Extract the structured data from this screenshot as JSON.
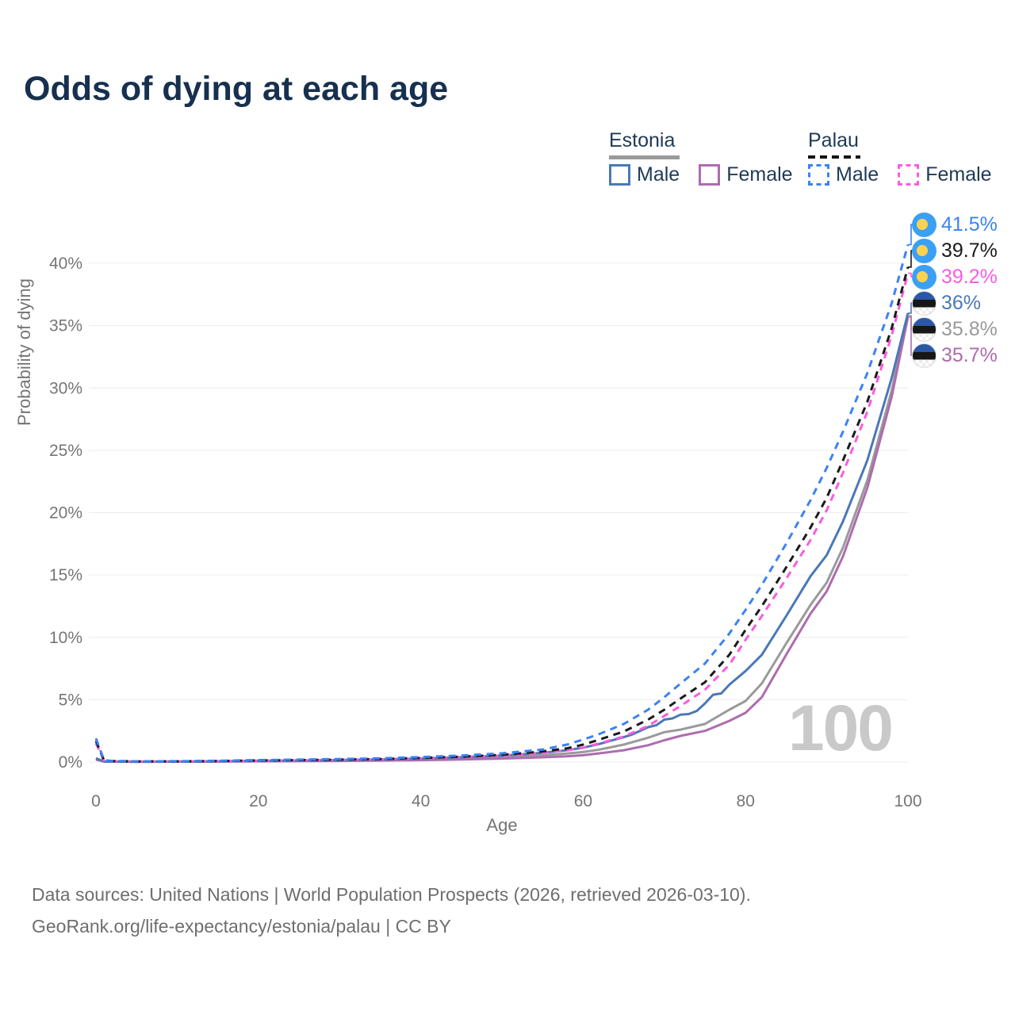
{
  "title": "Odds of dying at each age",
  "legend": {
    "estonia": {
      "name": "Estonia",
      "male": "Male",
      "female": "Female"
    },
    "palau": {
      "name": "Palau",
      "male": "Male",
      "female": "Female"
    }
  },
  "axes": {
    "y_title": "Probability of dying",
    "x_title": "Age"
  },
  "watermark": "100",
  "source": {
    "line1": "Data sources: United Nations | World Population Prospects (2026, retrieved 2026-03-10).",
    "line2": "GeoRank.org/life-expectancy/estonia/palau | CC BY"
  },
  "colors": {
    "title_text": "#17304f",
    "legend_text": "#1f3a56",
    "axis_text": "#757575",
    "grid": "#ececec",
    "watermark": "#c9c9c9",
    "source_text": "#6e6e6e",
    "estonia_underline": "#9a9a9a",
    "palau_underline": "#141414"
  },
  "chart_data": {
    "type": "line",
    "title": "Odds of dying at each age",
    "xlabel": "Age",
    "ylabel": "Probability of dying",
    "xlim": [
      0,
      100
    ],
    "ylim": [
      0,
      43
    ],
    "grid": "horizontal",
    "y_ticks": [
      0,
      5,
      10,
      15,
      20,
      25,
      30,
      35,
      40
    ],
    "y_tick_suffix": "%",
    "x_ticks": [
      0,
      20,
      40,
      60,
      80,
      100
    ],
    "series": [
      {
        "id": "est_all",
        "name": "Estonia",
        "country": "Estonia",
        "sex": "all",
        "style": "solid",
        "color": "#9a9a9a",
        "points": [
          [
            0,
            0.25
          ],
          [
            1,
            0.04
          ],
          [
            2,
            0.03
          ],
          [
            5,
            0.03
          ],
          [
            10,
            0.03
          ],
          [
            15,
            0.05
          ],
          [
            20,
            0.08
          ],
          [
            25,
            0.1
          ],
          [
            30,
            0.12
          ],
          [
            35,
            0.16
          ],
          [
            40,
            0.21
          ],
          [
            45,
            0.29
          ],
          [
            50,
            0.4
          ],
          [
            52,
            0.46
          ],
          [
            55,
            0.55
          ],
          [
            58,
            0.68
          ],
          [
            60,
            0.8
          ],
          [
            62,
            1.0
          ],
          [
            65,
            1.4
          ],
          [
            68,
            1.95
          ],
          [
            70,
            2.4
          ],
          [
            72,
            2.6
          ],
          [
            75,
            3.05
          ],
          [
            78,
            4.2
          ],
          [
            80,
            4.9
          ],
          [
            82,
            6.3
          ],
          [
            85,
            9.5
          ],
          [
            88,
            12.6
          ],
          [
            90,
            14.4
          ],
          [
            92,
            17.2
          ],
          [
            95,
            22.6
          ],
          [
            98,
            29.8
          ],
          [
            100,
            35.8
          ]
        ]
      },
      {
        "id": "est_female",
        "name": "Estonia Female",
        "country": "Estonia",
        "sex": "female",
        "style": "solid",
        "color": "#ad6cae",
        "points": [
          [
            0,
            0.2
          ],
          [
            1,
            0.04
          ],
          [
            2,
            0.03
          ],
          [
            5,
            0.02
          ],
          [
            10,
            0.03
          ],
          [
            15,
            0.04
          ],
          [
            20,
            0.06
          ],
          [
            25,
            0.07
          ],
          [
            30,
            0.09
          ],
          [
            35,
            0.12
          ],
          [
            40,
            0.15
          ],
          [
            45,
            0.21
          ],
          [
            50,
            0.28
          ],
          [
            52,
            0.32
          ],
          [
            55,
            0.38
          ],
          [
            58,
            0.46
          ],
          [
            60,
            0.55
          ],
          [
            62,
            0.7
          ],
          [
            65,
            0.95
          ],
          [
            68,
            1.35
          ],
          [
            70,
            1.75
          ],
          [
            72,
            2.1
          ],
          [
            75,
            2.5
          ],
          [
            78,
            3.3
          ],
          [
            80,
            3.95
          ],
          [
            82,
            5.2
          ],
          [
            85,
            8.6
          ],
          [
            88,
            11.9
          ],
          [
            90,
            13.7
          ],
          [
            92,
            16.5
          ],
          [
            95,
            22.0
          ],
          [
            98,
            29.3
          ],
          [
            100,
            35.7
          ]
        ]
      },
      {
        "id": "est_male",
        "name": "Estonia Male",
        "country": "Estonia",
        "sex": "male",
        "style": "solid",
        "color": "#4a78b8",
        "points": [
          [
            0,
            0.3
          ],
          [
            1,
            0.05
          ],
          [
            2,
            0.04
          ],
          [
            5,
            0.03
          ],
          [
            10,
            0.04
          ],
          [
            15,
            0.06
          ],
          [
            20,
            0.1
          ],
          [
            25,
            0.13
          ],
          [
            30,
            0.16
          ],
          [
            35,
            0.21
          ],
          [
            40,
            0.28
          ],
          [
            45,
            0.38
          ],
          [
            50,
            0.52
          ],
          [
            52,
            0.6
          ],
          [
            55,
            0.75
          ],
          [
            58,
            0.95
          ],
          [
            60,
            1.15
          ],
          [
            62,
            1.45
          ],
          [
            65,
            2.0
          ],
          [
            66,
            2.2
          ],
          [
            67,
            2.5
          ],
          [
            68,
            2.8
          ],
          [
            69,
            2.95
          ],
          [
            70,
            3.4
          ],
          [
            71,
            3.5
          ],
          [
            72,
            3.8
          ],
          [
            73,
            3.85
          ],
          [
            74,
            4.1
          ],
          [
            75,
            4.7
          ],
          [
            76,
            5.4
          ],
          [
            77,
            5.5
          ],
          [
            78,
            6.2
          ],
          [
            80,
            7.3
          ],
          [
            82,
            8.6
          ],
          [
            85,
            11.7
          ],
          [
            88,
            14.9
          ],
          [
            90,
            16.6
          ],
          [
            92,
            19.3
          ],
          [
            95,
            24.2
          ],
          [
            98,
            30.8
          ],
          [
            100,
            36.0
          ]
        ]
      },
      {
        "id": "palau_female",
        "name": "Palau Female",
        "country": "Palau",
        "sex": "female",
        "style": "dashed",
        "color": "#f95ce0",
        "points": [
          [
            0,
            1.5
          ],
          [
            1,
            0.12
          ],
          [
            2,
            0.07
          ],
          [
            5,
            0.05
          ],
          [
            10,
            0.05
          ],
          [
            15,
            0.07
          ],
          [
            20,
            0.11
          ],
          [
            25,
            0.14
          ],
          [
            30,
            0.17
          ],
          [
            35,
            0.22
          ],
          [
            40,
            0.3
          ],
          [
            45,
            0.4
          ],
          [
            50,
            0.52
          ],
          [
            52,
            0.6
          ],
          [
            55,
            0.75
          ],
          [
            58,
            0.95
          ],
          [
            60,
            1.15
          ],
          [
            62,
            1.5
          ],
          [
            65,
            2.05
          ],
          [
            68,
            2.9
          ],
          [
            70,
            3.7
          ],
          [
            72,
            4.5
          ],
          [
            75,
            5.8
          ],
          [
            78,
            7.8
          ],
          [
            80,
            9.8
          ],
          [
            82,
            11.7
          ],
          [
            85,
            14.7
          ],
          [
            88,
            17.8
          ],
          [
            90,
            20.2
          ],
          [
            92,
            23.2
          ],
          [
            95,
            28.1
          ],
          [
            98,
            34.2
          ],
          [
            100,
            39.2
          ]
        ]
      },
      {
        "id": "palau_all",
        "name": "Palau",
        "country": "Palau",
        "sex": "all",
        "style": "dashed",
        "color": "#1a1a1a",
        "points": [
          [
            0,
            1.7
          ],
          [
            1,
            0.13
          ],
          [
            2,
            0.08
          ],
          [
            5,
            0.05
          ],
          [
            10,
            0.06
          ],
          [
            15,
            0.08
          ],
          [
            20,
            0.13
          ],
          [
            25,
            0.16
          ],
          [
            30,
            0.19
          ],
          [
            35,
            0.24
          ],
          [
            40,
            0.33
          ],
          [
            45,
            0.43
          ],
          [
            50,
            0.58
          ],
          [
            52,
            0.68
          ],
          [
            55,
            0.85
          ],
          [
            58,
            1.1
          ],
          [
            60,
            1.4
          ],
          [
            62,
            1.8
          ],
          [
            65,
            2.45
          ],
          [
            68,
            3.4
          ],
          [
            70,
            4.2
          ],
          [
            72,
            5.1
          ],
          [
            75,
            6.4
          ],
          [
            78,
            8.6
          ],
          [
            80,
            10.6
          ],
          [
            82,
            12.5
          ],
          [
            85,
            15.6
          ],
          [
            88,
            18.8
          ],
          [
            90,
            21.2
          ],
          [
            92,
            24.2
          ],
          [
            95,
            28.9
          ],
          [
            98,
            34.8
          ],
          [
            100,
            39.7
          ]
        ]
      },
      {
        "id": "palau_male",
        "name": "Palau Male",
        "country": "Palau",
        "sex": "male",
        "style": "dashed",
        "color": "#3b82f6",
        "points": [
          [
            0,
            1.9
          ],
          [
            1,
            0.15
          ],
          [
            2,
            0.09
          ],
          [
            5,
            0.06
          ],
          [
            10,
            0.07
          ],
          [
            15,
            0.1
          ],
          [
            20,
            0.16
          ],
          [
            25,
            0.2
          ],
          [
            30,
            0.24
          ],
          [
            35,
            0.3
          ],
          [
            40,
            0.4
          ],
          [
            45,
            0.52
          ],
          [
            50,
            0.7
          ],
          [
            52,
            0.82
          ],
          [
            55,
            1.0
          ],
          [
            58,
            1.4
          ],
          [
            60,
            1.8
          ],
          [
            62,
            2.25
          ],
          [
            65,
            3.05
          ],
          [
            68,
            4.2
          ],
          [
            70,
            5.2
          ],
          [
            72,
            6.3
          ],
          [
            75,
            7.9
          ],
          [
            78,
            10.3
          ],
          [
            80,
            12.2
          ],
          [
            82,
            14.2
          ],
          [
            85,
            17.5
          ],
          [
            88,
            21.0
          ],
          [
            90,
            23.6
          ],
          [
            92,
            26.5
          ],
          [
            95,
            31.2
          ],
          [
            98,
            36.8
          ],
          [
            100,
            41.5
          ]
        ]
      }
    ],
    "end_labels": [
      {
        "series": "palau_male",
        "text": "41.5%",
        "flag": "palau",
        "color": "#3b82f6"
      },
      {
        "series": "palau_all",
        "text": "39.7%",
        "flag": "palau",
        "color": "#1a1a1a"
      },
      {
        "series": "palau_female",
        "text": "39.2%",
        "flag": "palau",
        "color": "#f95ce0"
      },
      {
        "series": "est_male",
        "text": "36%",
        "flag": "estonia",
        "color": "#4a78b8"
      },
      {
        "series": "est_all",
        "text": "35.8%",
        "flag": "estonia",
        "color": "#9a9a9a"
      },
      {
        "series": "est_female",
        "text": "35.7%",
        "flag": "estonia",
        "color": "#ad6cae"
      }
    ],
    "legend_position": "top-right"
  }
}
